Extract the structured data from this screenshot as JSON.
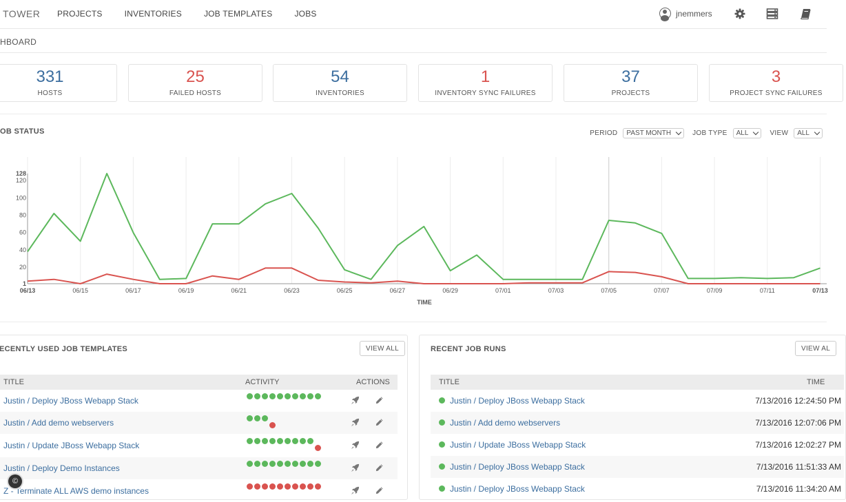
{
  "nav": {
    "brand": "TOWER",
    "links": [
      "PROJECTS",
      "INVENTORIES",
      "JOB TEMPLATES",
      "JOBS"
    ],
    "username": "jnemmers",
    "icons": [
      "user-icon",
      "gear-icon",
      "server-icon",
      "book-icon"
    ]
  },
  "breadcrumb": "HBOARD",
  "counts": [
    {
      "value": "331",
      "label": "HOSTS",
      "color": "#3c6e9f"
    },
    {
      "value": "25",
      "label": "FAILED HOSTS",
      "color": "#d9534f"
    },
    {
      "value": "54",
      "label": "INVENTORIES",
      "color": "#3c6e9f"
    },
    {
      "value": "1",
      "label": "INVENTORY SYNC FAILURES",
      "color": "#d9534f"
    },
    {
      "value": "37",
      "label": "PROJECTS",
      "color": "#3c6e9f"
    },
    {
      "value": "3",
      "label": "PROJECT SYNC FAILURES",
      "color": "#d9534f"
    }
  ],
  "job_status": {
    "title": "OB STATUS",
    "filters": {
      "period_label": "PERIOD",
      "period_value": "PAST MONTH",
      "job_type_label": "JOB TYPE",
      "job_type_value": "ALL",
      "view_label": "VIEW",
      "view_value": "ALL"
    }
  },
  "chart_data": {
    "type": "line",
    "title": "",
    "xlabel": "TIME",
    "ylabel": "",
    "ylim": [
      1,
      128
    ],
    "yticks": [
      "128",
      "120",
      "100",
      "80",
      "60",
      "40",
      "20",
      "1"
    ],
    "xticks": [
      "06/13",
      "06/15",
      "06/17",
      "06/19",
      "06/21",
      "06/23",
      "06/25",
      "06/27",
      "06/29",
      "07/01",
      "07/03",
      "07/05",
      "07/07",
      "07/09",
      "07/11",
      "07/13"
    ],
    "x": [
      "06/13",
      "06/14",
      "06/15",
      "06/16",
      "06/17",
      "06/18",
      "06/19",
      "06/20",
      "06/21",
      "06/22",
      "06/23",
      "06/24",
      "06/25",
      "06/26",
      "06/27",
      "06/28",
      "06/29",
      "06/30",
      "07/01",
      "07/02",
      "07/03",
      "07/04",
      "07/05",
      "07/06",
      "07/07",
      "07/08",
      "07/09",
      "07/10",
      "07/11",
      "07/12",
      "07/13"
    ],
    "grid": true,
    "series": [
      {
        "color": "#5cb85c",
        "values": [
          38,
          82,
          50,
          128,
          60,
          6,
          7,
          70,
          70,
          93,
          105,
          65,
          17,
          6,
          45,
          67,
          16,
          34,
          6,
          6,
          6,
          6,
          74,
          71,
          59,
          7,
          7,
          8,
          7,
          8,
          19
        ]
      },
      {
        "color": "#d9534f",
        "values": [
          4,
          6,
          1,
          12,
          6,
          1,
          1,
          10,
          6,
          19,
          19,
          5,
          3,
          2,
          4,
          1,
          1,
          1,
          1,
          2,
          2,
          2,
          15,
          14,
          9,
          1,
          1,
          1,
          1,
          1,
          1
        ]
      }
    ]
  },
  "templates_panel": {
    "title": "ECENTLY USED JOB TEMPLATES",
    "view_all": "VIEW ALL",
    "columns": [
      "TITLE",
      "ACTIVITY",
      "ACTIONS"
    ],
    "rows": [
      {
        "title": "Justin / Deploy JBoss Webapp Stack",
        "activity": "ssssssssss"
      },
      {
        "title": "Justin / Add demo webservers",
        "activity": "sssf"
      },
      {
        "title": "Justin / Update JBoss Webapp Stack",
        "activity": "sssssssssf"
      },
      {
        "title": "Justin / Deploy Demo Instances",
        "activity": "ssssssssss"
      },
      {
        "title": "Z - Terminate ALL AWS demo instances",
        "activity": "ffffffffff"
      }
    ]
  },
  "runs_panel": {
    "title": "RECENT JOB RUNS",
    "view_all": "VIEW AL",
    "columns": [
      "TITLE",
      "TIME"
    ],
    "rows": [
      {
        "title": "Justin / Deploy JBoss Webapp Stack",
        "time": "7/13/2016 12:24:50 PM"
      },
      {
        "title": "Justin / Add demo webservers",
        "time": "7/13/2016 12:07:06 PM"
      },
      {
        "title": "Justin / Update JBoss Webapp Stack",
        "time": "7/13/2016 12:02:27 PM"
      },
      {
        "title": "Justin / Deploy JBoss Webapp Stack",
        "time": "7/13/2016 11:51:33 AM"
      },
      {
        "title": "Justin / Deploy JBoss Webapp Stack",
        "time": "7/13/2016 11:34:20 AM"
      }
    ]
  },
  "copyright_symbol": "©"
}
